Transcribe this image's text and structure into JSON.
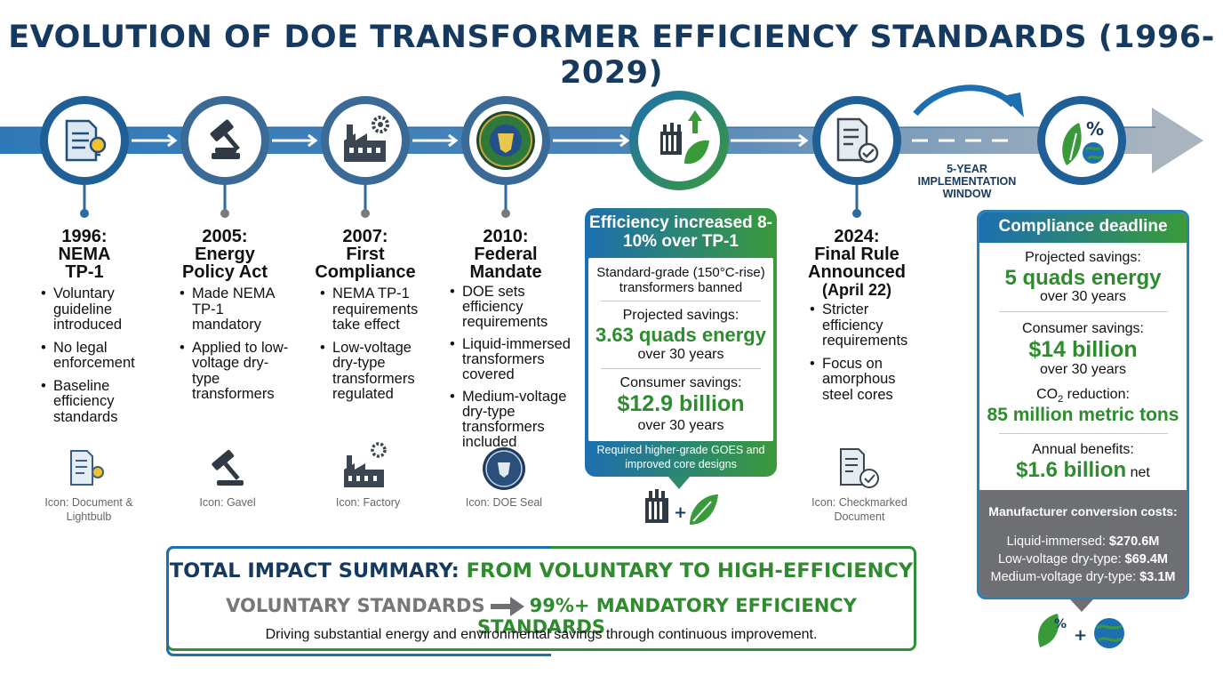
{
  "title": "EVOLUTION OF DOE TRANSFORMER EFFICIENCY STANDARDS (1996-2029)",
  "milestones": [
    {
      "year": "1996:",
      "name_lines": [
        "NEMA",
        "TP-1"
      ],
      "bullets": [
        "Voluntary guideline introduced",
        "No legal enforcement",
        "Baseline efficiency standards"
      ],
      "icon": "document-lightbulb-icon",
      "icon_caption": "Icon: Document & Lightbulb"
    },
    {
      "year": "2005:",
      "name_lines": [
        "Energy",
        "Policy Act"
      ],
      "bullets": [
        "Made NEMA TP-1 mandatory",
        "Applied to low-voltage dry-type transformers"
      ],
      "icon": "gavel-icon",
      "icon_caption": "Icon: Gavel"
    },
    {
      "year": "2007:",
      "name_lines": [
        "First",
        "Compliance"
      ],
      "bullets": [
        "NEMA TP-1 requirements take effect",
        "Low-voltage dry-type transformers regulated"
      ],
      "icon": "factory-icon",
      "icon_caption": "Icon: Factory"
    },
    {
      "year": "2010:",
      "name_lines": [
        "Federal",
        "Mandate"
      ],
      "bullets": [
        "DOE sets efficiency requirements",
        "Liquid-immersed transformers covered",
        "Medium-voltage dry-type transformers included"
      ],
      "icon": "doe-seal-icon",
      "icon_caption": "Icon: DOE Seal"
    },
    {
      "header": "Efficiency increased 8-10% over TP-1",
      "banned": "Standard-grade (150°C-rise) transformers banned",
      "energy_label": "Projected savings:",
      "energy_value": "3.63 quads energy",
      "energy_period": "over 30 years",
      "consumer_label": "Consumer savings:",
      "consumer_value": "$12.9 billion",
      "consumer_period": "over 30 years",
      "footer": "Required higher-grade GOES and improved core designs",
      "icon": "transformer-leaf-icon"
    },
    {
      "year": "2024:",
      "name_lines": [
        "Final Rule",
        "Announced"
      ],
      "date": "(April 22)",
      "bullets": [
        "Stricter efficiency requirements",
        "Focus on amorphous steel cores"
      ],
      "icon": "checkmarked-document-icon",
      "icon_caption": "Icon: Checkmarked Document"
    },
    {
      "header": "Compliance deadline",
      "energy_label": "Projected savings:",
      "energy_value": "5 quads energy",
      "energy_period": "over 30 years",
      "consumer_label": "Consumer savings:",
      "consumer_value": "$14 billion",
      "consumer_period": "over 30 years",
      "co2_label_prefix": "CO",
      "co2_label_sub": "2",
      "co2_label_suffix": " reduction:",
      "co2_value": "85 million metric tons",
      "annual_label": "Annual benefits:",
      "annual_value": "$1.6 billion",
      "annual_suffix": " net",
      "conv_title": "Manufacturer conversion costs:",
      "conv_items": [
        {
          "label": "Liquid-immersed: ",
          "value": "$270.6M"
        },
        {
          "label": "Low-voltage dry-type: ",
          "value": "$69.4M"
        },
        {
          "label": "Medium-voltage dry-type: ",
          "value": "$3.1M"
        }
      ],
      "icon": "leaf-percent-globe-icon"
    }
  ],
  "implementation_window": "5-YEAR IMPLEMENTATION WINDOW",
  "summary": {
    "title_part1": "TOTAL IMPACT SUMMARY: ",
    "title_part2": "FROM VOLUNTARY TO HIGH-EFFICIENCY",
    "from": "VOLUNTARY STANDARDS",
    "to": "99%+ MANDATORY EFFICIENCY STANDARDS",
    "tagline": "Driving substantial energy and environmental savings through continuous improvement."
  },
  "colors": {
    "navy": "#163a5f",
    "blue": "#1d6fb0",
    "green": "#2e8b2e",
    "gray": "#6d6f73"
  }
}
